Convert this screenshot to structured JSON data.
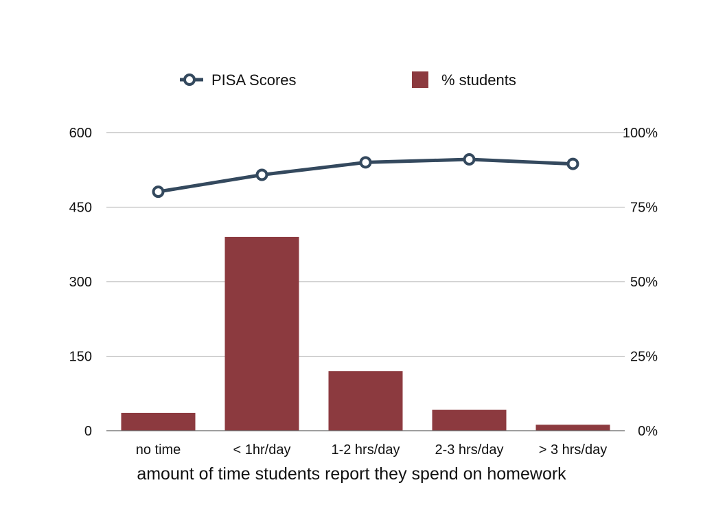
{
  "chart_data": {
    "type": "bar",
    "title": "",
    "xlabel": "amount of time students report they spend on homework",
    "categories": [
      "no time",
      "< 1hr/day",
      "1-2 hrs/day",
      "2-3 hrs/day",
      "> 3 hrs/day"
    ],
    "series": [
      {
        "name": "PISA Scores",
        "type": "line",
        "axis": "left",
        "color": "#34495e",
        "values": [
          481,
          515,
          540,
          546,
          537
        ]
      },
      {
        "name": "% students",
        "type": "bar",
        "axis": "right",
        "color": "#8c3a3f",
        "values": [
          6,
          65,
          20,
          7,
          2
        ]
      }
    ],
    "y_left": {
      "ylim": [
        0,
        600
      ],
      "ticks": [
        0,
        150,
        300,
        450,
        600
      ],
      "tick_labels": [
        "0",
        "150",
        "300",
        "450",
        "600"
      ]
    },
    "y_right": {
      "ylim": [
        0,
        100
      ],
      "ticks": [
        0,
        25,
        50,
        75,
        100
      ],
      "tick_labels": [
        "0%",
        "25%",
        "50%",
        "75%",
        "100%"
      ]
    },
    "grid": true,
    "legend_position": "top-center"
  }
}
